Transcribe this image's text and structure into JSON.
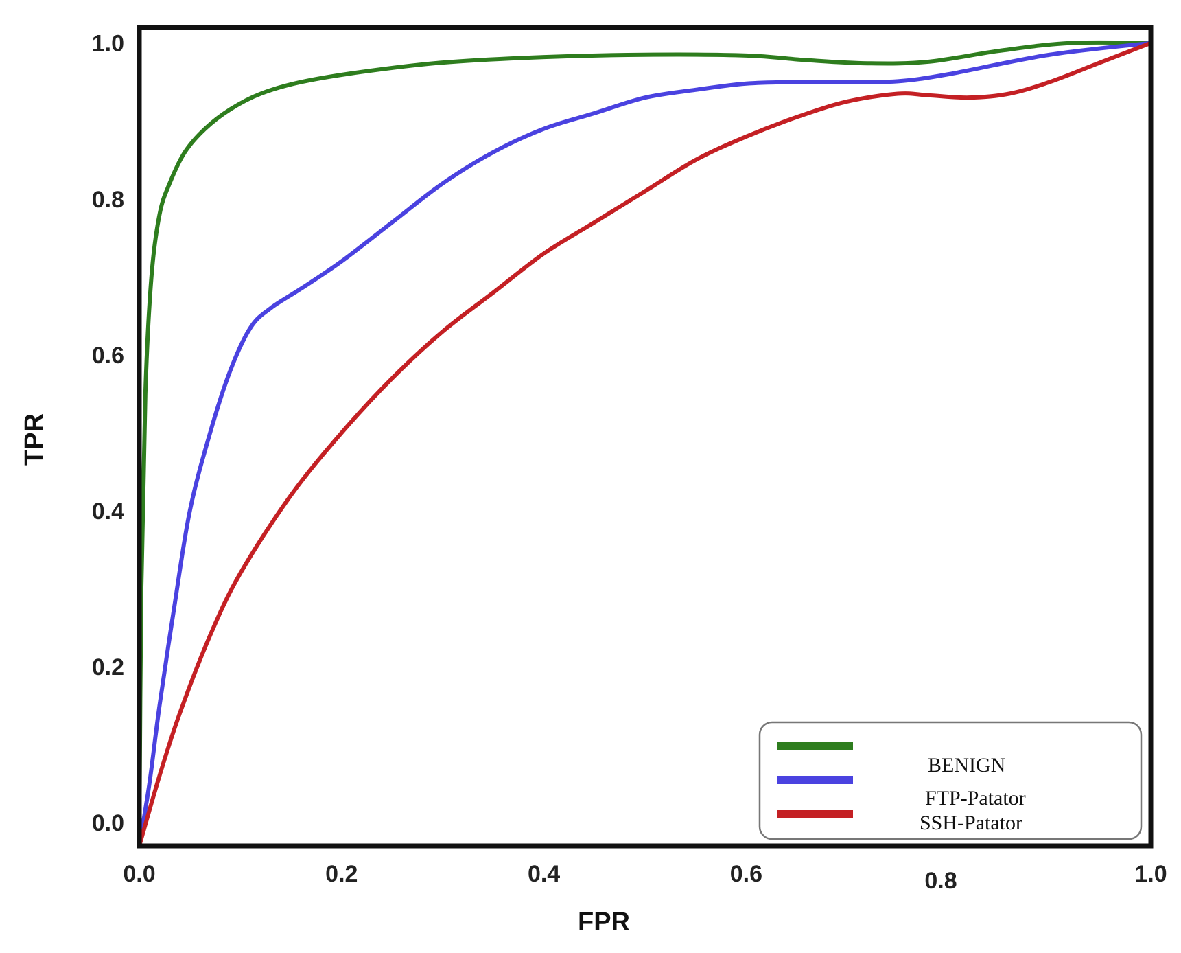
{
  "chart_data": {
    "type": "line",
    "xlabel": "FPR",
    "ylabel": "TPR",
    "xlim": [
      0.0,
      1.0
    ],
    "ylim": [
      -0.03,
      1.02
    ],
    "x_ticks": [
      {
        "value": 0.0,
        "label": "0.0"
      },
      {
        "value": 0.2,
        "label": "0.2"
      },
      {
        "value": 0.4,
        "label": "0.4"
      },
      {
        "value": 0.6,
        "label": "0.6"
      },
      {
        "value": 0.8,
        "label": "0.8"
      },
      {
        "value": 1.0,
        "label": "1.0"
      }
    ],
    "y_ticks": [
      {
        "value": 0.0,
        "label": "0.0"
      },
      {
        "value": 0.2,
        "label": "0.2"
      },
      {
        "value": 0.4,
        "label": "0.4"
      },
      {
        "value": 0.6,
        "label": "0.6"
      },
      {
        "value": 0.8,
        "label": "0.8"
      },
      {
        "value": 1.0,
        "label": "1.0"
      }
    ],
    "grid": false,
    "legend_position": "bottom-right",
    "series": [
      {
        "name": "BENIGN",
        "color": "#2e7d1e",
        "x": [
          0.0,
          0.002,
          0.006,
          0.012,
          0.02,
          0.03,
          0.045,
          0.065,
          0.09,
          0.12,
          0.16,
          0.22,
          0.3,
          0.4,
          0.5,
          0.6,
          0.66,
          0.72,
          0.78,
          0.85,
          0.92,
          1.0
        ],
        "y": [
          -0.03,
          0.3,
          0.55,
          0.7,
          0.78,
          0.82,
          0.86,
          0.89,
          0.915,
          0.935,
          0.95,
          0.963,
          0.975,
          0.982,
          0.985,
          0.984,
          0.978,
          0.974,
          0.976,
          0.99,
          1.0,
          1.0
        ]
      },
      {
        "name": "FTP-Patator",
        "color": "#4a42e0",
        "x": [
          0.0,
          0.01,
          0.02,
          0.035,
          0.05,
          0.07,
          0.09,
          0.11,
          0.13,
          0.16,
          0.2,
          0.25,
          0.3,
          0.35,
          0.4,
          0.45,
          0.5,
          0.55,
          0.6,
          0.65,
          0.7,
          0.75,
          0.8,
          0.9,
          1.0
        ],
        "y": [
          -0.03,
          0.05,
          0.15,
          0.28,
          0.4,
          0.5,
          0.58,
          0.635,
          0.66,
          0.685,
          0.72,
          0.77,
          0.82,
          0.86,
          0.89,
          0.91,
          0.93,
          0.94,
          0.948,
          0.95,
          0.95,
          0.951,
          0.96,
          0.985,
          1.0
        ]
      },
      {
        "name": "SSH-Patator",
        "color": "#c42024",
        "x": [
          0.0,
          0.02,
          0.04,
          0.07,
          0.1,
          0.15,
          0.2,
          0.25,
          0.3,
          0.35,
          0.4,
          0.45,
          0.5,
          0.55,
          0.6,
          0.65,
          0.7,
          0.75,
          0.78,
          0.82,
          0.86,
          0.9,
          0.95,
          1.0
        ],
        "y": [
          -0.03,
          0.06,
          0.14,
          0.24,
          0.32,
          0.42,
          0.5,
          0.57,
          0.63,
          0.68,
          0.73,
          0.77,
          0.81,
          0.85,
          0.88,
          0.905,
          0.925,
          0.935,
          0.933,
          0.93,
          0.935,
          0.95,
          0.975,
          1.0
        ]
      }
    ]
  }
}
